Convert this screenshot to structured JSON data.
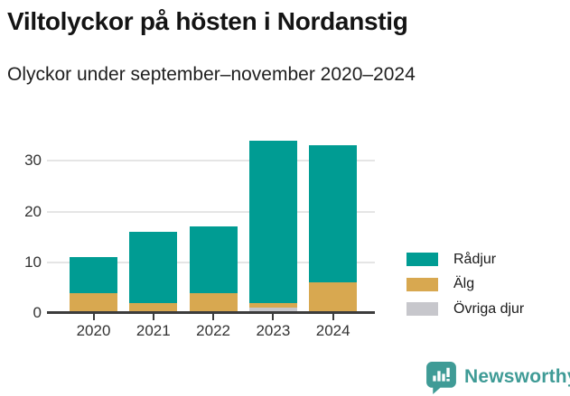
{
  "header": {
    "title": "Viltolyckor på hösten i Nordanstig",
    "subtitle": "Olyckor under september–november 2020–2024"
  },
  "chart_data": {
    "type": "bar",
    "stacked": true,
    "title": "Viltolyckor på hösten i Nordanstig",
    "subtitle": "Olyckor under september–november 2020–2024",
    "categories": [
      "2020",
      "2021",
      "2022",
      "2023",
      "2024"
    ],
    "series": [
      {
        "name": "Rådjur",
        "color": "#009c93",
        "values": [
          7,
          14,
          13,
          32,
          27
        ]
      },
      {
        "name": "Älg",
        "color": "#d8a850",
        "values": [
          4,
          2,
          4,
          1,
          6
        ]
      },
      {
        "name": "Övriga djur",
        "color": "#c7c7cc",
        "values": [
          0,
          0,
          0,
          1,
          0
        ]
      }
    ],
    "stack_order_bottom_to_top": [
      "Övriga djur",
      "Älg",
      "Rådjur"
    ],
    "totals": [
      11,
      16,
      17,
      34,
      33
    ],
    "xlabel": "",
    "ylabel": "",
    "yticks": [
      0,
      10,
      20,
      30
    ],
    "ylim": [
      0,
      37
    ],
    "grid": "horizontal",
    "legend_position": "top-right",
    "axis_color": "#3c3c3c",
    "gridline_color": "#e5e5e5"
  },
  "footer": {
    "brand": "Newsworthy",
    "brand_color": "#3f9b96",
    "logo_icon": "newsworthy-speech-bubble-bar-chart-icon"
  }
}
